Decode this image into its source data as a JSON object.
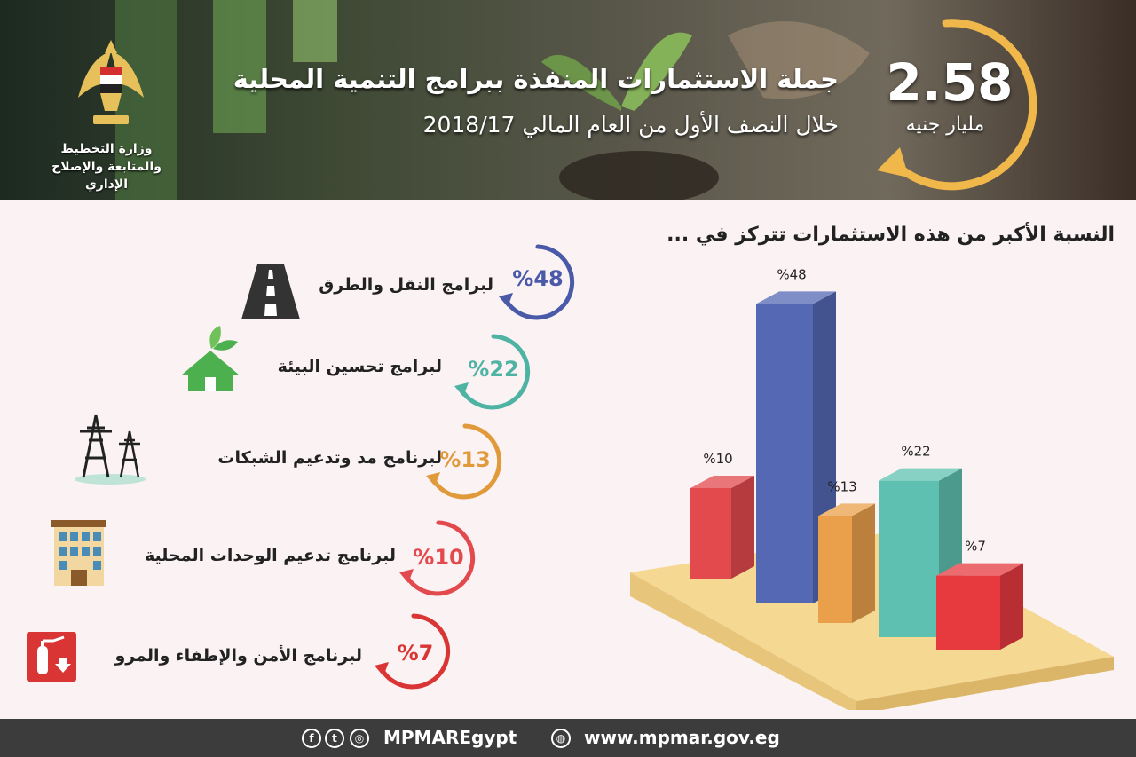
{
  "header": {
    "ministry_name": "وزارة التخطيط والمتابعة والإصلاح الإداري",
    "title": "جملة الاستثمارات المنفذة ببرامج التنمية المحلية",
    "subtitle": "خلال النصف الأول من العام المالي 2018/17",
    "amount": "2.58",
    "amount_unit": "مليار جنيه"
  },
  "chart_heading": "النسبة الأكبر من هذه الاستثمارات تتركز في ...",
  "programs": [
    {
      "label": "لبرامج النقل والطرق",
      "pct_text": "%48",
      "value": 48,
      "color": "#4a5aa8",
      "icon": "road-icon"
    },
    {
      "label": "لبرامج تحسين البيئة",
      "pct_text": "%22",
      "value": 22,
      "color": "#4fb3a4",
      "icon": "green-house-icon"
    },
    {
      "label": "لبرنامج مد وتدعيم الشبكات",
      "pct_text": "%13",
      "value": 13,
      "color": "#e09a3a",
      "icon": "power-tower-icon"
    },
    {
      "label": "لبرنامج تدعيم الوحدات المحلية",
      "pct_text": "%10",
      "value": 10,
      "color": "#e24a4e",
      "icon": "building-icon"
    },
    {
      "label": "لبرنامج الأمن والإطفاء والمرو",
      "pct_text": "%7",
      "value": 7,
      "color": "#d93535",
      "icon": "fire-extinguisher-icon"
    }
  ],
  "chart_data": {
    "type": "bar",
    "title": "النسبة الأكبر من هذه الاستثمارات تتركز في ...",
    "categories": [
      "لبرنامج تدعيم الوحدات المحلية",
      "لبرامج النقل والطرق",
      "لبرنامج مد وتدعيم الشبكات",
      "لبرامج تحسين البيئة",
      "لبرنامج الأمن والإطفاء والمرو"
    ],
    "values": [
      10,
      48,
      13,
      22,
      7
    ],
    "labels": [
      "%10",
      "%48",
      "%13",
      "%22",
      "%7"
    ],
    "colors": [
      "#e24a4e",
      "#5468b4",
      "#eaa04a",
      "#5ec0b0",
      "#e63a3e"
    ],
    "unit": "%",
    "xlabel": "",
    "ylabel": "",
    "ylim": [
      0,
      50
    ]
  },
  "footer": {
    "handle": "MPMAREgypt",
    "website": "www.mpmar.gov.eg",
    "social_icons": [
      "facebook-icon",
      "twitter-icon",
      "instagram-icon"
    ]
  }
}
